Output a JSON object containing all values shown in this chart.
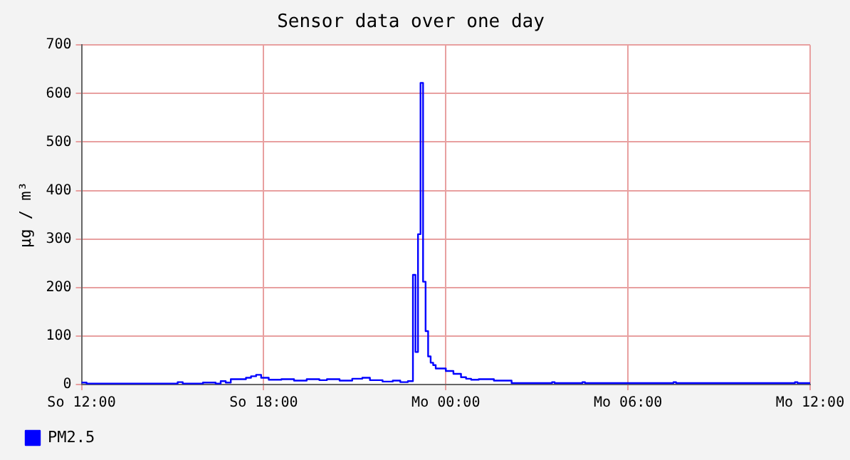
{
  "chart_data": {
    "type": "step",
    "title": "Sensor data over one day",
    "ylabel": "µg / m³",
    "categories": [
      "So 12:00",
      null,
      null,
      null,
      null,
      null,
      null,
      null,
      null,
      null,
      null,
      null,
      null,
      null,
      null,
      null,
      null,
      null,
      null,
      null,
      null,
      null,
      null,
      null,
      null,
      null,
      null,
      null,
      null,
      null,
      null,
      null,
      null,
      null,
      null,
      null,
      null,
      null,
      null,
      null,
      null,
      null,
      null,
      null,
      null,
      null,
      null,
      null,
      null,
      null,
      null,
      null,
      null,
      null,
      null,
      null,
      null,
      null,
      null,
      null,
      null,
      null,
      null,
      null,
      null,
      null,
      null,
      null,
      null,
      null,
      null,
      null,
      "So 18:00",
      null,
      null,
      null,
      null,
      null,
      null,
      null,
      null,
      null,
      null,
      null,
      null,
      null,
      null,
      null,
      null,
      null,
      null,
      null,
      null,
      null,
      null,
      null,
      null,
      null,
      null,
      null,
      null,
      null,
      null,
      null,
      null,
      null,
      null,
      null,
      null,
      null,
      null,
      null,
      null,
      null,
      null,
      null,
      null,
      null,
      null,
      null,
      null,
      null,
      null,
      null,
      null,
      null,
      null,
      null,
      null,
      null,
      null,
      null,
      null,
      null,
      null,
      null,
      null,
      null,
      null,
      null,
      null,
      null,
      null,
      null,
      "Mo 00:00",
      null,
      null,
      null,
      null,
      null,
      null,
      null,
      null,
      null,
      null,
      null,
      null,
      null,
      null,
      null,
      null,
      null,
      null,
      null,
      null,
      null,
      null,
      null,
      null,
      null,
      null,
      null,
      null,
      null,
      null,
      null,
      null,
      null,
      null,
      null,
      null,
      null,
      null,
      null,
      null,
      null,
      null,
      null,
      null,
      null,
      null,
      null,
      null,
      null,
      null,
      null,
      null,
      null,
      null,
      null,
      null,
      null,
      null,
      null,
      null,
      null,
      null,
      null,
      null,
      null,
      null,
      null,
      null,
      null,
      null,
      null,
      "Mo 06:00",
      null,
      null,
      null,
      null,
      null,
      null,
      null,
      null,
      null,
      null,
      null,
      null,
      null,
      null,
      null,
      null,
      null,
      null,
      null,
      null,
      null,
      null,
      null,
      null,
      null,
      null,
      null,
      null,
      null,
      null,
      null,
      null,
      null,
      null,
      null,
      null,
      null,
      null,
      null,
      null,
      null,
      null,
      null,
      null,
      null,
      null,
      null,
      null,
      null,
      null,
      null,
      null,
      null,
      null,
      null,
      null,
      null,
      null,
      null,
      null,
      null,
      null,
      null,
      null,
      null,
      null,
      null,
      null,
      null,
      null,
      null,
      "Mo 12:00"
    ],
    "ylim": [
      0,
      700
    ],
    "yticks": [
      0,
      100,
      200,
      300,
      400,
      500,
      600,
      700
    ],
    "grid": true,
    "legend": "bottom left",
    "line_style": "solid",
    "marker": "none",
    "series": [
      {
        "name": "PM2.5",
        "color": "#0000ff",
        "values": [
          4,
          4,
          2,
          2,
          2,
          2,
          2,
          2,
          2,
          2,
          2,
          2,
          2,
          2,
          2,
          2,
          2,
          2,
          2,
          2,
          2,
          2,
          2,
          2,
          2,
          2,
          2,
          2,
          2,
          2,
          2,
          2,
          2,
          2,
          2,
          2,
          2,
          2,
          5,
          5,
          2,
          2,
          2,
          2,
          2,
          2,
          2,
          2,
          4,
          4,
          4,
          4,
          4,
          2,
          2,
          7,
          7,
          4,
          4,
          11,
          11,
          11,
          11,
          11,
          11,
          14,
          14,
          17,
          17,
          20,
          20,
          14,
          14,
          14,
          10,
          10,
          10,
          10,
          10,
          11,
          11,
          11,
          11,
          11,
          8,
          8,
          8,
          8,
          8,
          11,
          11,
          11,
          11,
          11,
          9,
          9,
          9,
          11,
          11,
          11,
          11,
          11,
          8,
          8,
          8,
          8,
          8,
          12,
          12,
          12,
          12,
          14,
          14,
          14,
          9,
          9,
          9,
          9,
          9,
          6,
          6,
          6,
          6,
          8,
          8,
          8,
          5,
          5,
          5,
          7,
          7,
          226,
          67,
          310,
          622,
          212,
          110,
          58,
          45,
          40,
          33,
          33,
          33,
          33,
          28,
          28,
          28,
          22,
          22,
          22,
          15,
          15,
          12,
          12,
          10,
          10,
          10,
          11,
          11,
          11,
          11,
          11,
          11,
          8,
          8,
          8,
          8,
          8,
          8,
          8,
          3,
          3,
          3,
          3,
          3,
          3,
          3,
          3,
          3,
          3,
          3,
          3,
          3,
          3,
          3,
          3,
          5,
          3,
          3,
          3,
          3,
          3,
          3,
          3,
          3,
          3,
          3,
          3,
          5,
          3,
          3,
          3,
          3,
          3,
          3,
          3,
          3,
          3,
          3,
          3,
          3,
          3,
          3,
          3,
          3,
          3,
          3,
          3,
          3,
          3,
          3,
          3,
          3,
          3,
          3,
          3,
          3,
          3,
          3,
          3,
          3,
          3,
          3,
          3,
          5,
          3,
          3,
          3,
          3,
          3,
          3,
          3,
          3,
          3,
          3,
          3,
          3,
          3,
          3,
          3,
          3,
          3,
          3,
          3,
          3,
          3,
          3,
          3,
          3,
          3,
          3,
          3,
          3,
          3,
          3,
          3,
          3,
          3,
          3,
          3,
          3,
          3,
          3,
          3,
          3,
          3,
          3,
          3,
          3,
          3,
          3,
          3,
          5,
          3,
          3,
          3,
          3,
          3,
          3
        ]
      }
    ]
  }
}
